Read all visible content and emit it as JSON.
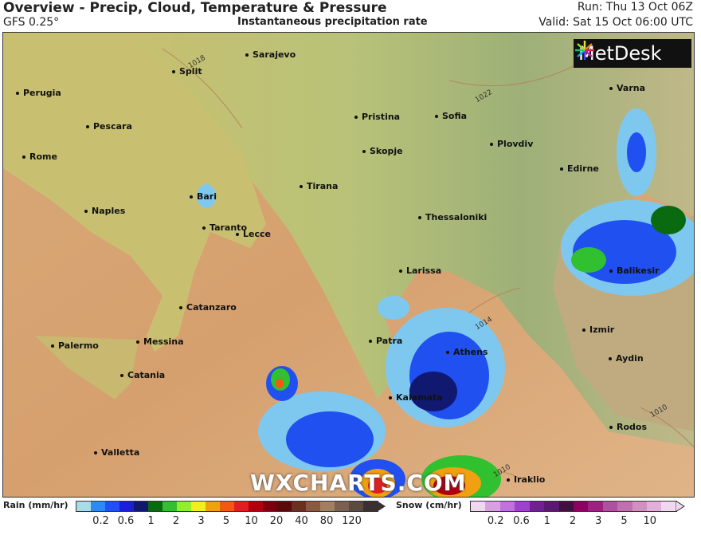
{
  "header": {
    "title": "Overview - Precip, Cloud, Temperature & Pressure",
    "model": "GFS 0.25°",
    "subtitle": "Instantaneous precipitation rate",
    "run": "Run: Thu 13 Oct 06Z",
    "valid": "Valid: Sat 15 Oct 06:00 UTC"
  },
  "logo": {
    "text": "MetDesk"
  },
  "watermark": "WXCHARTS.COM",
  "cities": [
    "Sarajevo",
    "Split",
    "Perugia",
    "Pescara",
    "Rome",
    "Pristina",
    "Sofia",
    "Skopje",
    "Plovdiv",
    "Varna",
    "Edirne",
    "Tirana",
    "Bari",
    "Naples",
    "Taranto",
    "Lecce",
    "Thessaloniki",
    "Balikesir",
    "Larissa",
    "Catanzaro",
    "Izmir",
    "Palermo",
    "Messina",
    "Patra",
    "Athens",
    "Aydin",
    "Catania",
    "Kalamata",
    "Rodos",
    "Valletta",
    "Iraklio"
  ],
  "isobars": [
    "1018",
    "1022",
    "1014",
    "1010",
    "1010"
  ],
  "legend": {
    "rain_label": "Rain (mm/hr)",
    "rain_ticks": [
      "0.2",
      "0.6",
      "1",
      "2",
      "3",
      "5",
      "10",
      "20",
      "40",
      "80",
      "120"
    ],
    "rain_colors": [
      "#a8dce6",
      "#2a8cf0",
      "#2050f0",
      "#1a20d8",
      "#101870",
      "#0a6a10",
      "#30c030",
      "#90f030",
      "#f0f020",
      "#f0a010",
      "#f05a10",
      "#e02020",
      "#b00010",
      "#7a0010",
      "#5a0a0a",
      "#6a3020",
      "#8a5a40",
      "#a08060",
      "#7a6050",
      "#5a4a40",
      "#3a3030"
    ],
    "snow_label": "Snow (cm/hr)",
    "snow_ticks": [
      "0.2",
      "0.6",
      "1",
      "2",
      "3",
      "5",
      "10"
    ],
    "snow_colors": [
      "#f0d8f0",
      "#d8a0e0",
      "#c070e0",
      "#a040d0",
      "#702090",
      "#5a1870",
      "#401040",
      "#900060",
      "#a02080",
      "#b050a0",
      "#c070b0",
      "#d090c0",
      "#e0b0d8",
      "#f0d8f0"
    ]
  }
}
